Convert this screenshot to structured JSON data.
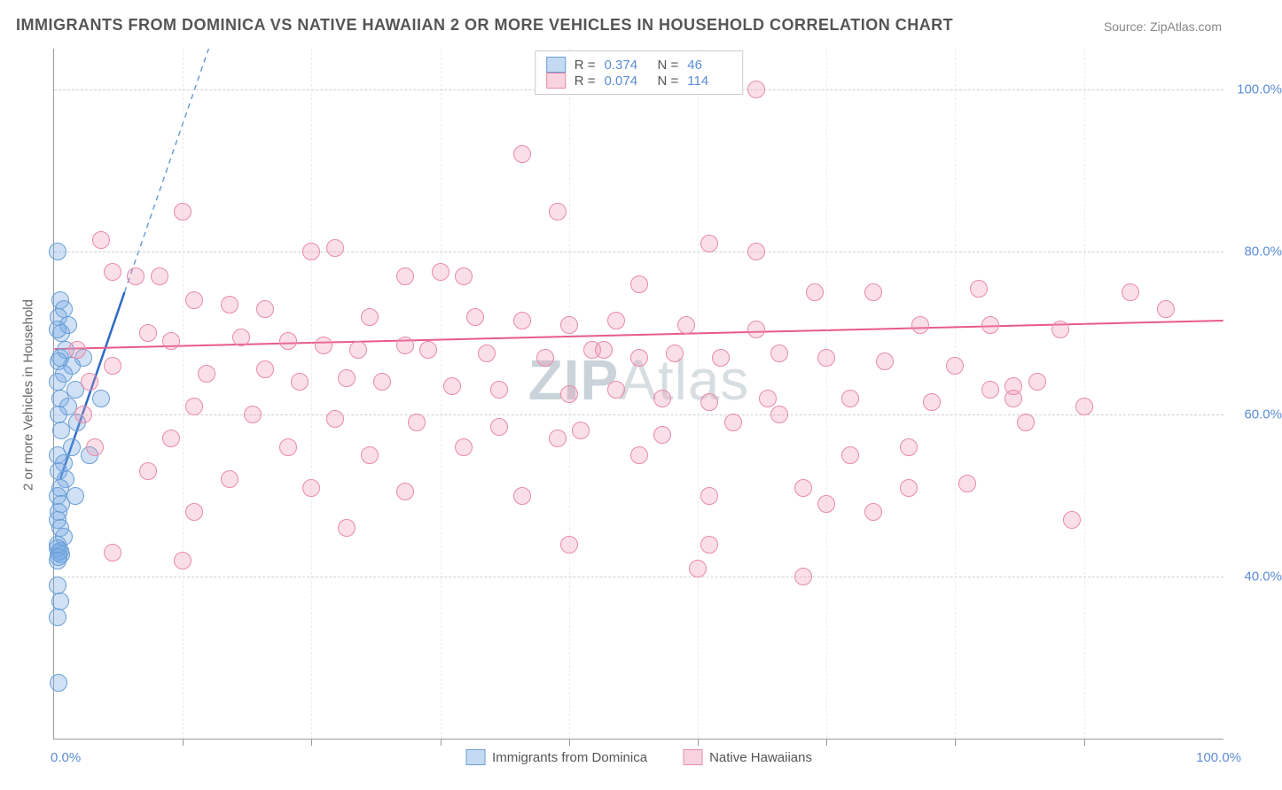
{
  "title_text": "IMMIGRANTS FROM DOMINICA VS NATIVE HAWAIIAN 2 OR MORE VEHICLES IN HOUSEHOLD CORRELATION CHART",
  "source_text": "Source: ZipAtlas.com",
  "ylabel_text": "2 or more Vehicles in Household",
  "watermark_text_bold": "ZIP",
  "watermark_text_rest": "Atlas",
  "chart": {
    "type": "scatter",
    "xlim": [
      0,
      100
    ],
    "ylim": [
      20,
      105
    ],
    "x_tick_labels": {
      "left": "0.0%",
      "right": "100.0%"
    },
    "y_ticks": [
      40,
      60,
      80,
      100
    ],
    "y_tick_labels": [
      "40.0%",
      "60.0%",
      "80.0%",
      "100.0%"
    ],
    "x_grid_positions": [
      11,
      22,
      33,
      44,
      55,
      66,
      77,
      88
    ],
    "grid_color": "#d0d0d0",
    "background_color": "#ffffff",
    "point_radius": 10,
    "point_stroke_width": 1.5,
    "series": [
      {
        "name": "Immigrants from Dominica",
        "fill_color": "rgba(120,170,230,0.35)",
        "stroke_color": "#6a9fd4",
        "legend_fill": "#c4daf3",
        "legend_stroke": "#6a9fd4",
        "r_value": "0.374",
        "n_value": "46",
        "trend": {
          "x1": 0.5,
          "y1": 52,
          "x2": 6,
          "y2": 75,
          "ext_x2": 18,
          "ext_y2": 125,
          "solid_color": "#2d6bc4",
          "dash_color": "#6a9fd4",
          "width": 2.5
        },
        "points": [
          [
            0.3,
            80
          ],
          [
            0.5,
            74
          ],
          [
            0.8,
            73
          ],
          [
            0.4,
            72
          ],
          [
            1.2,
            71
          ],
          [
            0.6,
            70
          ],
          [
            0.3,
            70.5
          ],
          [
            1.0,
            68
          ],
          [
            0.5,
            67
          ],
          [
            2.5,
            67
          ],
          [
            1.5,
            66
          ],
          [
            0.4,
            66.5
          ],
          [
            0.8,
            65
          ],
          [
            0.3,
            64
          ],
          [
            1.8,
            63
          ],
          [
            0.5,
            62
          ],
          [
            1.2,
            61
          ],
          [
            4,
            62
          ],
          [
            0.4,
            60
          ],
          [
            2,
            59
          ],
          [
            0.6,
            58
          ],
          [
            1.5,
            56
          ],
          [
            0.3,
            55
          ],
          [
            3,
            55
          ],
          [
            0.8,
            54
          ],
          [
            0.4,
            53
          ],
          [
            1.0,
            52
          ],
          [
            0.5,
            51
          ],
          [
            0.3,
            50
          ],
          [
            1.8,
            50
          ],
          [
            0.6,
            49
          ],
          [
            0.4,
            48
          ],
          [
            0.3,
            47
          ],
          [
            0.5,
            46
          ],
          [
            0.8,
            45
          ],
          [
            0.3,
            44
          ],
          [
            0.4,
            43
          ],
          [
            0.5,
            43.2
          ],
          [
            0.3,
            43.5
          ],
          [
            0.6,
            42.8
          ],
          [
            0.4,
            42.5
          ],
          [
            0.3,
            42
          ],
          [
            0.3,
            39
          ],
          [
            0.5,
            37
          ],
          [
            0.3,
            35
          ],
          [
            0.4,
            27
          ]
        ]
      },
      {
        "name": "Native Hawaiians",
        "fill_color": "rgba(240,150,180,0.30)",
        "stroke_color": "#e88ba8",
        "legend_fill": "#f9d4e0",
        "legend_stroke": "#e88ba8",
        "r_value": "0.074",
        "n_value": "114",
        "trend": {
          "x1": 0,
          "y1": 68,
          "x2": 100,
          "y2": 71.5,
          "solid_color": "#e85a8a",
          "width": 2
        },
        "points": [
          [
            60,
            100
          ],
          [
            40,
            92
          ],
          [
            43,
            85
          ],
          [
            11,
            85
          ],
          [
            4,
            81.5
          ],
          [
            56,
            81
          ],
          [
            60,
            80
          ],
          [
            22,
            80
          ],
          [
            24,
            80.5
          ],
          [
            7,
            77
          ],
          [
            9,
            77
          ],
          [
            5,
            77.5
          ],
          [
            30,
            77
          ],
          [
            33,
            77.5
          ],
          [
            35,
            77
          ],
          [
            50,
            76
          ],
          [
            65,
            75
          ],
          [
            92,
            75
          ],
          [
            79,
            75.5
          ],
          [
            70,
            75
          ],
          [
            12,
            74
          ],
          [
            15,
            73.5
          ],
          [
            18,
            73
          ],
          [
            27,
            72
          ],
          [
            36,
            72
          ],
          [
            40,
            71.5
          ],
          [
            44,
            71
          ],
          [
            48,
            71.5
          ],
          [
            54,
            71
          ],
          [
            60,
            70.5
          ],
          [
            74,
            71
          ],
          [
            80,
            71
          ],
          [
            86,
            70.5
          ],
          [
            95,
            73
          ],
          [
            8,
            70
          ],
          [
            10,
            69
          ],
          [
            16,
            69.5
          ],
          [
            20,
            69
          ],
          [
            23,
            68.5
          ],
          [
            26,
            68
          ],
          [
            30,
            68.5
          ],
          [
            32,
            68
          ],
          [
            37,
            67.5
          ],
          [
            42,
            67
          ],
          [
            46,
            68
          ],
          [
            50,
            67
          ],
          [
            53,
            67.5
          ],
          [
            57,
            67
          ],
          [
            62,
            67.5
          ],
          [
            66,
            67
          ],
          [
            71,
            66.5
          ],
          [
            77,
            66
          ],
          [
            5,
            66
          ],
          [
            13,
            65
          ],
          [
            18,
            65.5
          ],
          [
            21,
            64
          ],
          [
            25,
            64.5
          ],
          [
            28,
            64
          ],
          [
            34,
            63.5
          ],
          [
            38,
            63
          ],
          [
            44,
            62.5
          ],
          [
            48,
            63
          ],
          [
            52,
            62
          ],
          [
            56,
            61.5
          ],
          [
            61,
            62
          ],
          [
            68,
            62
          ],
          [
            75,
            61.5
          ],
          [
            82,
            62
          ],
          [
            88,
            61
          ],
          [
            12,
            61
          ],
          [
            17,
            60
          ],
          [
            24,
            59.5
          ],
          [
            31,
            59
          ],
          [
            38,
            58.5
          ],
          [
            45,
            58
          ],
          [
            52,
            57.5
          ],
          [
            58,
            59
          ],
          [
            10,
            57
          ],
          [
            20,
            56
          ],
          [
            27,
            55
          ],
          [
            35,
            56
          ],
          [
            43,
            57
          ],
          [
            50,
            55
          ],
          [
            68,
            55
          ],
          [
            73,
            56
          ],
          [
            83,
            59
          ],
          [
            8,
            53
          ],
          [
            15,
            52
          ],
          [
            22,
            51
          ],
          [
            30,
            50.5
          ],
          [
            40,
            50
          ],
          [
            56,
            50
          ],
          [
            64,
            51
          ],
          [
            70,
            48
          ],
          [
            66,
            49
          ],
          [
            12,
            48
          ],
          [
            25,
            46
          ],
          [
            11,
            42
          ],
          [
            55,
            41
          ],
          [
            44,
            44
          ],
          [
            5,
            43
          ],
          [
            73,
            51
          ],
          [
            78,
            51.5
          ],
          [
            80,
            63
          ],
          [
            82,
            63.5
          ],
          [
            84,
            64
          ],
          [
            87,
            47
          ],
          [
            56,
            44
          ],
          [
            62,
            60
          ],
          [
            64,
            40
          ],
          [
            47,
            68
          ],
          [
            2,
            68
          ],
          [
            3,
            64
          ],
          [
            2.5,
            60
          ],
          [
            3.5,
            56
          ]
        ]
      }
    ]
  },
  "legend_top_labels": {
    "r": "R =",
    "n": "N ="
  },
  "legend_bottom": [
    "Immigrants from Dominica",
    "Native Hawaiians"
  ]
}
